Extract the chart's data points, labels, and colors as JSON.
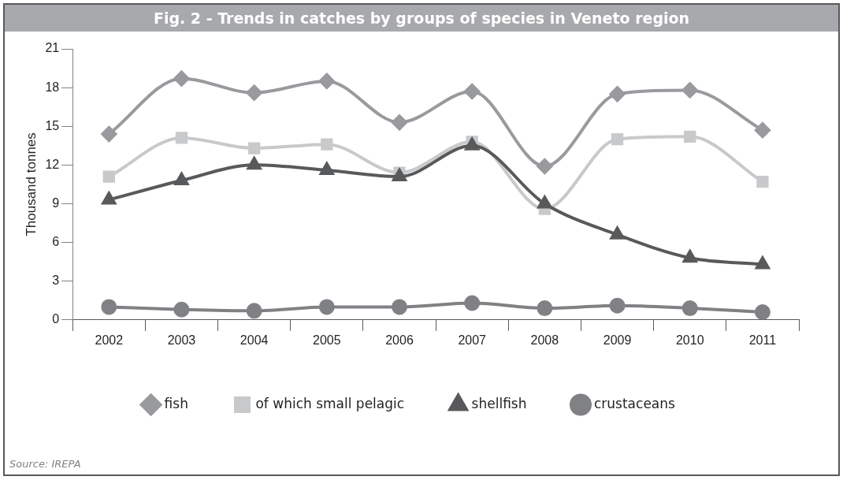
{
  "chart_data": {
    "type": "line",
    "title": "Fig. 2 - Trends in catches by groups of species in Veneto region",
    "ylabel": "Thousand tonnes",
    "categories": [
      "2002",
      "2003",
      "2004",
      "2005",
      "2006",
      "2007",
      "2008",
      "2009",
      "2010",
      "2011"
    ],
    "series": [
      {
        "name": "fish",
        "color": "#999a9e",
        "marker": "diamond",
        "values": [
          14.4,
          18.7,
          17.6,
          18.5,
          15.3,
          17.7,
          11.9,
          17.5,
          17.8,
          14.7
        ]
      },
      {
        "name": "of which small pelagic",
        "color": "#c8c9cb",
        "marker": "square",
        "values": [
          11.1,
          14.1,
          13.3,
          13.6,
          11.4,
          13.8,
          8.6,
          14.0,
          14.2,
          10.7
        ]
      },
      {
        "name": "shellfish",
        "color": "#58595b",
        "marker": "triangle",
        "values": [
          9.3,
          10.8,
          12.0,
          11.6,
          11.1,
          13.5,
          9.0,
          6.6,
          4.8,
          4.3
        ]
      },
      {
        "name": "crustaceans",
        "color": "#808184",
        "marker": "circle",
        "values": [
          1.0,
          0.8,
          0.7,
          1.0,
          1.0,
          1.3,
          0.9,
          1.1,
          0.9,
          0.6
        ]
      }
    ],
    "ylim": [
      0,
      21
    ],
    "yticks": [
      0,
      3,
      6,
      9,
      12,
      15,
      18,
      21
    ],
    "grid": false,
    "legend": "bottom",
    "annotations": [
      "Source: IREPA"
    ]
  }
}
